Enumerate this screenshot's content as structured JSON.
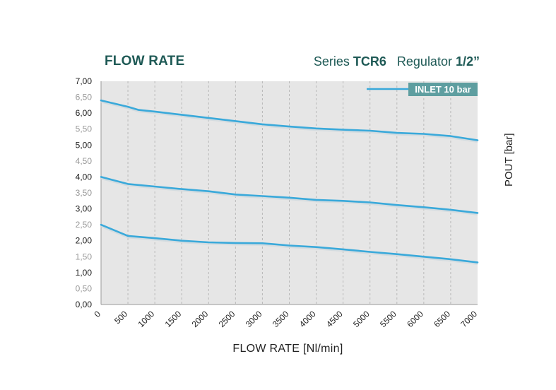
{
  "header": {
    "title": "FLOW RATE",
    "series_prefix": "Series",
    "series_code": "TCR6",
    "product_prefix": "Regulator",
    "product_size": "1/2”"
  },
  "colors": {
    "plot_bg": "#e6e6e6",
    "line": "#3aa9da",
    "legend_box": "#5e9ea0",
    "title": "#1f5a56"
  },
  "chart_data": {
    "type": "line",
    "title": "FLOW RATE",
    "xlabel": "FLOW RATE [Nl/min]",
    "ylabel": "POUT [bar]",
    "xlim": [
      0,
      7000
    ],
    "ylim": [
      0,
      7
    ],
    "grid": "vertical dashed",
    "x_ticks": [
      "0",
      "500",
      "1000",
      "1500",
      "2000",
      "2500",
      "3000",
      "3500",
      "4000",
      "4500",
      "5000",
      "5500",
      "6000",
      "6500",
      "7000"
    ],
    "y_ticks": [
      "0,00",
      "0,50",
      "1,00",
      "1,50",
      "2,00",
      "2,50",
      "3,00",
      "3,50",
      "4,00",
      "4,50",
      "5,00",
      "5,50",
      "6,00",
      "6,50",
      "7,00"
    ],
    "legend": [
      {
        "label": "INLET  10 bar",
        "placement": "top-right"
      }
    ],
    "series": [
      {
        "x": [
          0,
          500,
          700,
          1000,
          1500,
          2000,
          2500,
          3000,
          3500,
          4000,
          4500,
          5000,
          5500,
          6000,
          6500,
          7000
        ],
        "y": [
          6.4,
          6.2,
          6.1,
          6.05,
          5.95,
          5.85,
          5.75,
          5.65,
          5.58,
          5.52,
          5.48,
          5.45,
          5.38,
          5.35,
          5.28,
          5.15
        ]
      },
      {
        "x": [
          0,
          500,
          1000,
          1500,
          2000,
          2500,
          3000,
          3500,
          4000,
          4500,
          5000,
          5500,
          6000,
          6500,
          7000
        ],
        "y": [
          4.0,
          3.78,
          3.7,
          3.62,
          3.55,
          3.45,
          3.4,
          3.35,
          3.28,
          3.25,
          3.2,
          3.12,
          3.05,
          2.97,
          2.87
        ]
      },
      {
        "x": [
          0,
          500,
          1000,
          1500,
          2000,
          2500,
          3000,
          3500,
          4000,
          4500,
          5000,
          5500,
          6000,
          6500,
          7000
        ],
        "y": [
          2.5,
          2.15,
          2.08,
          2.0,
          1.95,
          1.93,
          1.92,
          1.85,
          1.8,
          1.73,
          1.65,
          1.58,
          1.5,
          1.42,
          1.32
        ]
      }
    ]
  }
}
